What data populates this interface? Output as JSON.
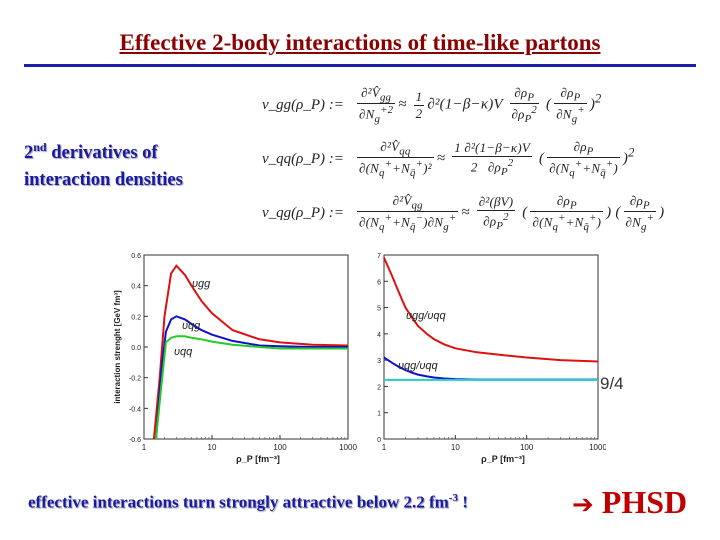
{
  "slide": {
    "title": "Effective 2-body interactions of time-like partons",
    "subtitle_line1": "derivatives of",
    "subtitle_ordinal": "2",
    "subtitle_ordinal_sup": "nd",
    "subtitle_line2": "interaction densities",
    "formula_lhs": [
      "v_gg(ρ_P) :=",
      "v_qq(ρ_P) :=",
      "v_qg(ρ_P) :="
    ],
    "ratio_label": "9/4",
    "bottom_text": "effective interactions turn strongly attractive below 2.2 fm",
    "bottom_sup": "-3",
    "bottom_end": " !",
    "arrow_glyph": "➔",
    "phsd_label": "PHSD"
  },
  "chart_data": [
    {
      "type": "line",
      "ylabel": "interaction strenght [GeV fm³]",
      "xlabel": "ρ_P [fm⁻³]",
      "xscale": "log",
      "xlim": [
        1,
        1000
      ],
      "ylim": [
        -0.6,
        0.6
      ],
      "x_ticks": [
        "1",
        "10",
        "100",
        "1000"
      ],
      "y_ticks": [
        "0.6",
        "0.4",
        "0.2",
        "0.0",
        "-0.2",
        "-0.4",
        "-0.6"
      ],
      "series": [
        {
          "name": "υgg",
          "color": "#dd1111",
          "x": [
            1.4,
            1.7,
            2.0,
            2.5,
            3.0,
            4,
            5,
            7,
            10,
            20,
            50,
            100,
            300,
            1000
          ],
          "values": [
            -0.6,
            -0.2,
            0.2,
            0.48,
            0.53,
            0.47,
            0.4,
            0.3,
            0.22,
            0.11,
            0.05,
            0.03,
            0.015,
            0.01
          ]
        },
        {
          "name": "υqg",
          "color": "#1111cc",
          "x": [
            1.5,
            1.8,
            2.1,
            2.5,
            3.0,
            4,
            5,
            7,
            10,
            20,
            50,
            100,
            300,
            1000
          ],
          "values": [
            -0.6,
            -0.15,
            0.1,
            0.18,
            0.2,
            0.18,
            0.15,
            0.11,
            0.08,
            0.04,
            0.01,
            0.005,
            0.0,
            0.0
          ]
        },
        {
          "name": "υqq",
          "color": "#22cc22",
          "x": [
            1.5,
            1.8,
            2.1,
            2.5,
            3.0,
            4,
            5,
            7,
            10,
            20,
            50,
            100,
            300,
            1000
          ],
          "values": [
            -0.6,
            -0.25,
            0.03,
            0.06,
            0.07,
            0.07,
            0.06,
            0.05,
            0.035,
            0.015,
            0.0,
            -0.01,
            -0.01,
            -0.01
          ]
        }
      ]
    },
    {
      "type": "line",
      "xlabel": "ρ_P [fm⁻³]",
      "xscale": "log",
      "xlim": [
        1,
        1000
      ],
      "ylim": [
        0,
        7
      ],
      "x_ticks": [
        "1",
        "10",
        "100",
        "1000"
      ],
      "y_ticks": [
        "7",
        "6",
        "5",
        "4",
        "3",
        "2",
        "1",
        "0"
      ],
      "series": [
        {
          "name": "υgg/υqq",
          "color": "#dd1111",
          "x": [
            1.0,
            1.3,
            1.6,
            2.0,
            2.5,
            3.0,
            4,
            5,
            7,
            10,
            20,
            50,
            100,
            300,
            1000
          ],
          "values": [
            6.9,
            6.2,
            5.6,
            5.0,
            4.6,
            4.3,
            4.0,
            3.8,
            3.6,
            3.45,
            3.3,
            3.18,
            3.1,
            3.0,
            2.95
          ]
        },
        {
          "name": "υqg/υqq",
          "color": "#1111cc",
          "x": [
            1.0,
            1.3,
            1.6,
            2.0,
            2.5,
            3.0,
            4,
            5,
            7,
            10,
            20,
            50,
            100,
            300,
            1000
          ],
          "values": [
            3.1,
            2.9,
            2.75,
            2.62,
            2.52,
            2.45,
            2.38,
            2.34,
            2.3,
            2.28,
            2.26,
            2.26,
            2.26,
            2.26,
            2.26
          ]
        },
        {
          "name": "",
          "color": "#22cccc",
          "x": [
            1,
            1000
          ],
          "values": [
            2.25,
            2.25
          ]
        }
      ]
    }
  ]
}
